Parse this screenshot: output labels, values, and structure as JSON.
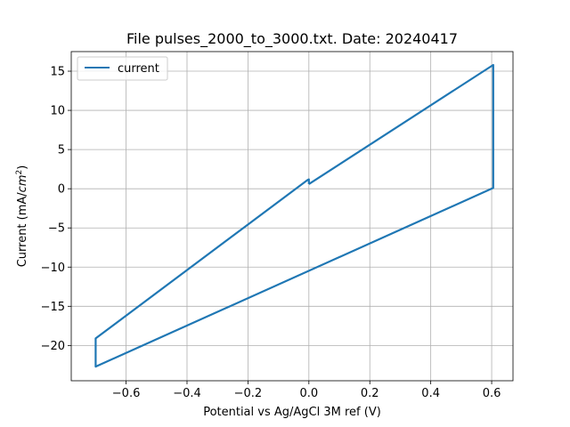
{
  "chart_data": {
    "type": "line",
    "title": "File pulses_2000_to_3000.txt. Date: 20240417",
    "xlabel": "Potential vs Ag/AgCl 3M ref (V)",
    "ylabel": "Current (mA/cm²)",
    "ylabel_parts": {
      "pre": "Current (mA/",
      "unit": "cm",
      "sup": "2",
      "post": ")"
    },
    "xlim": [
      -0.78,
      0.67
    ],
    "ylim": [
      -24.5,
      17.5
    ],
    "xticks": [
      -0.6,
      -0.4,
      -0.2,
      0.0,
      0.2,
      0.4,
      0.6
    ],
    "xtick_labels": [
      "−0.6",
      "−0.4",
      "−0.2",
      "0.0",
      "0.2",
      "0.4",
      "0.6"
    ],
    "yticks": [
      15,
      10,
      5,
      0,
      -5,
      -10,
      -15,
      -20
    ],
    "ytick_labels": [
      "15",
      "10",
      "5",
      "0",
      "−5",
      "−10",
      "−15",
      "−20"
    ],
    "grid": true,
    "legend_position": "top-left",
    "series": [
      {
        "name": "current",
        "color": "#1f77b4",
        "x": [
          0.0,
          0.605,
          0.605,
          0.605,
          -0.7,
          -0.7,
          -0.7,
          -0.005,
          0.0,
          0.0
        ],
        "y": [
          0.6,
          15.8,
          15.8,
          0.1,
          -22.7,
          -22.7,
          -19.1,
          1.1,
          1.2,
          0.6
        ]
      }
    ]
  }
}
